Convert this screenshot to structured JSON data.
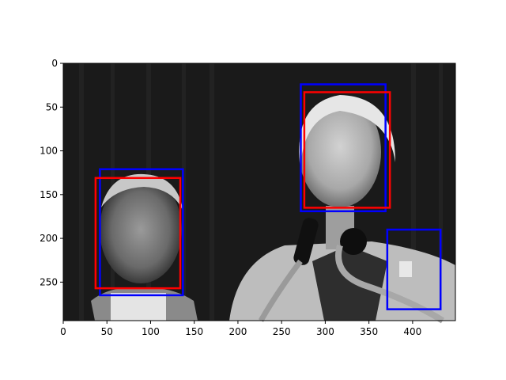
{
  "chart_data": {
    "type": "image",
    "image_content": "grayscale photograph: older man (left) and woman speaking at microphones (right) against dark background",
    "x_ticks": [
      0,
      50,
      100,
      150,
      200,
      250,
      300,
      350,
      400
    ],
    "y_ticks": [
      0,
      50,
      100,
      150,
      200,
      250
    ],
    "xlim": [
      0,
      449
    ],
    "ylim": [
      294,
      0
    ],
    "grid": false,
    "boxes": [
      {
        "x0": 42,
        "y0": 121,
        "x1": 137,
        "y1": 265,
        "color": "#0000ff"
      },
      {
        "x0": 37,
        "y0": 131,
        "x1": 134,
        "y1": 257,
        "color": "#ff0000"
      },
      {
        "x0": 272,
        "y0": 24,
        "x1": 369,
        "y1": 169,
        "color": "#0000ff"
      },
      {
        "x0": 276,
        "y0": 33,
        "x1": 374,
        "y1": 165,
        "color": "#ff0000"
      },
      {
        "x0": 371,
        "y0": 190,
        "x1": 432,
        "y1": 281,
        "color": "#0000ff"
      }
    ]
  }
}
